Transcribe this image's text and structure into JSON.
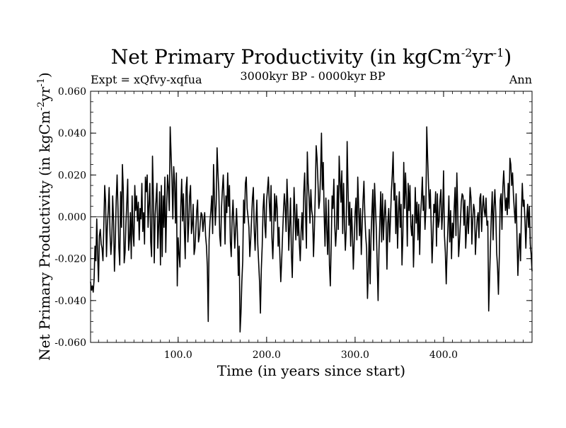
{
  "chart_data": {
    "type": "line",
    "title": "Net Primary Productivity (in kgCm",
    "title_sup1": "-2",
    "title_mid": "yr",
    "title_sup2": "-1",
    "title_end": ")",
    "expt_label": "Expt = xQfvy-xqfua",
    "period_label": "3000kyr BP - 0000kyr BP",
    "season_label": "Ann",
    "xlabel": "Time (in years since start)",
    "ylabel_main": "Net Primary Productivity (in kgCm",
    "ylabel_sup1": "-2",
    "ylabel_mid": "yr",
    "ylabel_sup2": "-1",
    "ylabel_end": ")",
    "xlim": [
      1,
      500
    ],
    "ylim": [
      -0.06,
      0.06
    ],
    "xticks": [
      100,
      200,
      300,
      400
    ],
    "xtick_labels": [
      "100.0",
      "200.0",
      "300.0",
      "400.0"
    ],
    "yticks": [
      -0.06,
      -0.04,
      -0.02,
      0.0,
      0.02,
      0.04,
      0.06
    ],
    "ytick_labels": [
      "-0.060",
      "-0.040",
      "-0.020",
      "0.000",
      "0.020",
      "0.040",
      "0.060"
    ],
    "zero_line": true,
    "series_color": "#000000",
    "x_start": 1,
    "x_step": 1,
    "values": [
      -0.031,
      -0.035,
      -0.033,
      -0.036,
      -0.03,
      -0.014,
      -0.021,
      -0.001,
      -0.018,
      -0.031,
      -0.009,
      -0.006,
      -0.013,
      -0.015,
      -0.021,
      -0.004,
      0.015,
      0.007,
      -0.019,
      -0.004,
      0.003,
      0.014,
      -0.008,
      -0.018,
      -0.011,
      0.01,
      -0.002,
      -0.026,
      -0.012,
      0.008,
      0.02,
      0.004,
      -0.015,
      -0.023,
      0.012,
      -0.005,
      0.025,
      0.013,
      -0.022,
      -0.017,
      -0.003,
      0.007,
      0.018,
      -0.016,
      -0.011,
      0.002,
      -0.02,
      0.01,
      -0.008,
      -0.014,
      0.015,
      0.003,
      0.01,
      -0.002,
      0.007,
      -0.011,
      0.004,
      -0.001,
      0.016,
      -0.007,
      0.002,
      -0.013,
      0.019,
      0.012,
      0.02,
      -0.005,
      0.006,
      0.016,
      -0.012,
      -0.019,
      0.029,
      0.01,
      -0.022,
      0.001,
      0.008,
      0.016,
      -0.015,
      -0.004,
      0.012,
      -0.023,
      0.015,
      -0.019,
      0.01,
      -0.005,
      0.019,
      -0.017,
      0.004,
      0.02,
      0.014,
      0.003,
      0.043,
      0.03,
      0.018,
      -0.001,
      0.024,
      0.016,
      -0.003,
      0.021,
      -0.033,
      -0.01,
      -0.018,
      -0.024,
      0.005,
      0.018,
      -0.002,
      0.011,
      -0.006,
      -0.02,
      0.014,
      0.019,
      -0.012,
      -0.003,
      0.01,
      0.015,
      -0.008,
      -0.004,
      0.006,
      -0.018,
      -0.015,
      -0.006,
      0.003,
      0.008,
      -0.012,
      -0.009,
      -0.003,
      0.002,
      0.001,
      -0.007,
      -0.002,
      0.002,
      -0.009,
      -0.014,
      -0.024,
      -0.05,
      -0.011,
      -0.002,
      0.003,
      0.01,
      -0.008,
      0.025,
      0.01,
      -0.004,
      0.006,
      0.033,
      0.021,
      0.012,
      -0.009,
      -0.014,
      0.004,
      0.013,
      0.02,
      0.007,
      -0.013,
      0.01,
      0.002,
      0.021,
      0.005,
      0.015,
      -0.012,
      -0.019,
      -0.001,
      0.008,
      -0.003,
      -0.015,
      -0.006,
      0.004,
      -0.008,
      -0.028,
      -0.014,
      -0.055,
      -0.046,
      -0.031,
      -0.021,
      0.008,
      -0.003,
      0.016,
      0.019,
      0.004,
      0.0,
      -0.005,
      -0.019,
      -0.011,
      -0.001,
      0.009,
      0.014,
      -0.006,
      -0.016,
      -0.002,
      0.008,
      -0.013,
      -0.022,
      -0.031,
      -0.046,
      -0.025,
      -0.014,
      0.004,
      0.011,
      -0.004,
      -0.01,
      0.008,
      0.013,
      0.019,
      0.007,
      -0.002,
      0.015,
      -0.01,
      -0.02,
      -0.006,
      0.011,
      -0.002,
      0.01,
      0.004,
      -0.014,
      -0.005,
      -0.019,
      -0.031,
      -0.021,
      -0.009,
      0.002,
      0.011,
      0.005,
      -0.007,
      0.018,
      0.006,
      -0.016,
      -0.004,
      0.009,
      -0.017,
      -0.029,
      -0.008,
      0.014,
      0.001,
      -0.011,
      0.006,
      -0.009,
      -0.001,
      -0.013,
      -0.021,
      -0.007,
      0.002,
      -0.011,
      0.012,
      0.021,
      0.002,
      -0.015,
      0.031,
      0.016,
      0.009,
      -0.003,
      0.013,
      0.003,
      0.0,
      -0.019,
      -0.006,
      0.011,
      0.034,
      0.028,
      0.017,
      0.004,
      0.008,
      0.021,
      0.04,
      0.013,
      0.026,
      0.002,
      -0.014,
      0.009,
      -0.006,
      -0.018,
      0.008,
      -0.023,
      -0.033,
      -0.013,
      0.01,
      0.004,
      0.018,
      -0.004,
      -0.014,
      -0.006,
      0.015,
      -0.006,
      0.029,
      0.017,
      0.007,
      0.022,
      -0.008,
      0.016,
      -0.003,
      -0.016,
      -0.006,
      0.036,
      0.014,
      -0.004,
      0.007,
      -0.014,
      0.004,
      -0.008,
      -0.025,
      -0.012,
      0.002,
      0.009,
      -0.011,
      0.019,
      0.005,
      -0.009,
      0.004,
      -0.018,
      -0.004,
      0.008,
      0.017,
      0.001,
      -0.009,
      -0.015,
      -0.039,
      -0.026,
      -0.006,
      -0.032,
      -0.01,
      0.002,
      0.013,
      -0.016,
      0.016,
      0.005,
      -0.006,
      -0.023,
      -0.04,
      -0.016,
      -0.002,
      0.012,
      -0.012,
      0.011,
      -0.011,
      0.0,
      0.008,
      -0.003,
      -0.025,
      -0.003,
      0.004,
      -0.012,
      -0.001,
      0.012,
      0.02,
      0.031,
      0.008,
      0.016,
      -0.008,
      0.01,
      -0.015,
      0.002,
      0.012,
      -0.005,
      0.006,
      -0.023,
      -0.009,
      0.026,
      0.004,
      0.021,
      0.009,
      -0.014,
      0.016,
      0.003,
      0.015,
      -0.004,
      -0.009,
      0.001,
      -0.024,
      -0.008,
      0.014,
      -0.003,
      0.007,
      -0.011,
      0.006,
      -0.018,
      0.001,
      0.008,
      0.019,
      0.003,
      0.01,
      -0.006,
      0.004,
      0.043,
      0.028,
      0.015,
      0.004,
      0.013,
      -0.004,
      -0.022,
      -0.01,
      0.006,
      0.002,
      0.012,
      -0.014,
      0.011,
      -0.005,
      -0.002,
      0.008,
      0.013,
      -0.006,
      0.002,
      0.022,
      -0.009,
      -0.017,
      -0.032,
      -0.016,
      -0.004,
      0.01,
      -0.012,
      0.003,
      -0.02,
      -0.003,
      -0.01,
      0.004,
      0.014,
      -0.009,
      0.021,
      0.004,
      -0.019,
      -0.012,
      -0.003,
      0.007,
      0.011,
      0.01,
      -0.004,
      0.008,
      -0.015,
      -0.006,
      0.005,
      -0.008,
      0.002,
      0.014,
      0.009,
      -0.013,
      -0.001,
      0.006,
      0.003,
      -0.018,
      -0.008,
      -0.001,
      0.002,
      -0.01,
      0.009,
      0.011,
      -0.007,
      0.004,
      0.01,
      0.003,
      0.0,
      0.009,
      -0.004,
      -0.002,
      -0.045,
      -0.029,
      -0.014,
      0.001,
      0.012,
      -0.011,
      0.005,
      0.013,
      0.002,
      -0.017,
      -0.024,
      -0.037,
      -0.019,
      0.008,
      0.011,
      -0.006,
      0.014,
      0.022,
      0.012,
      0.003,
      0.009,
      0.001,
      0.016,
      0.004,
      0.028,
      0.025,
      0.015,
      0.021,
      0.01,
      0.003,
      -0.003,
      0.011,
      -0.01,
      -0.028,
      -0.016,
      -0.008,
      -0.021,
      0.002,
      0.016,
      0.005,
      0.008,
      -0.002,
      -0.015,
      -0.001,
      0.006,
      -0.005,
      0.005,
      -0.013,
      -0.018,
      -0.026
    ]
  }
}
